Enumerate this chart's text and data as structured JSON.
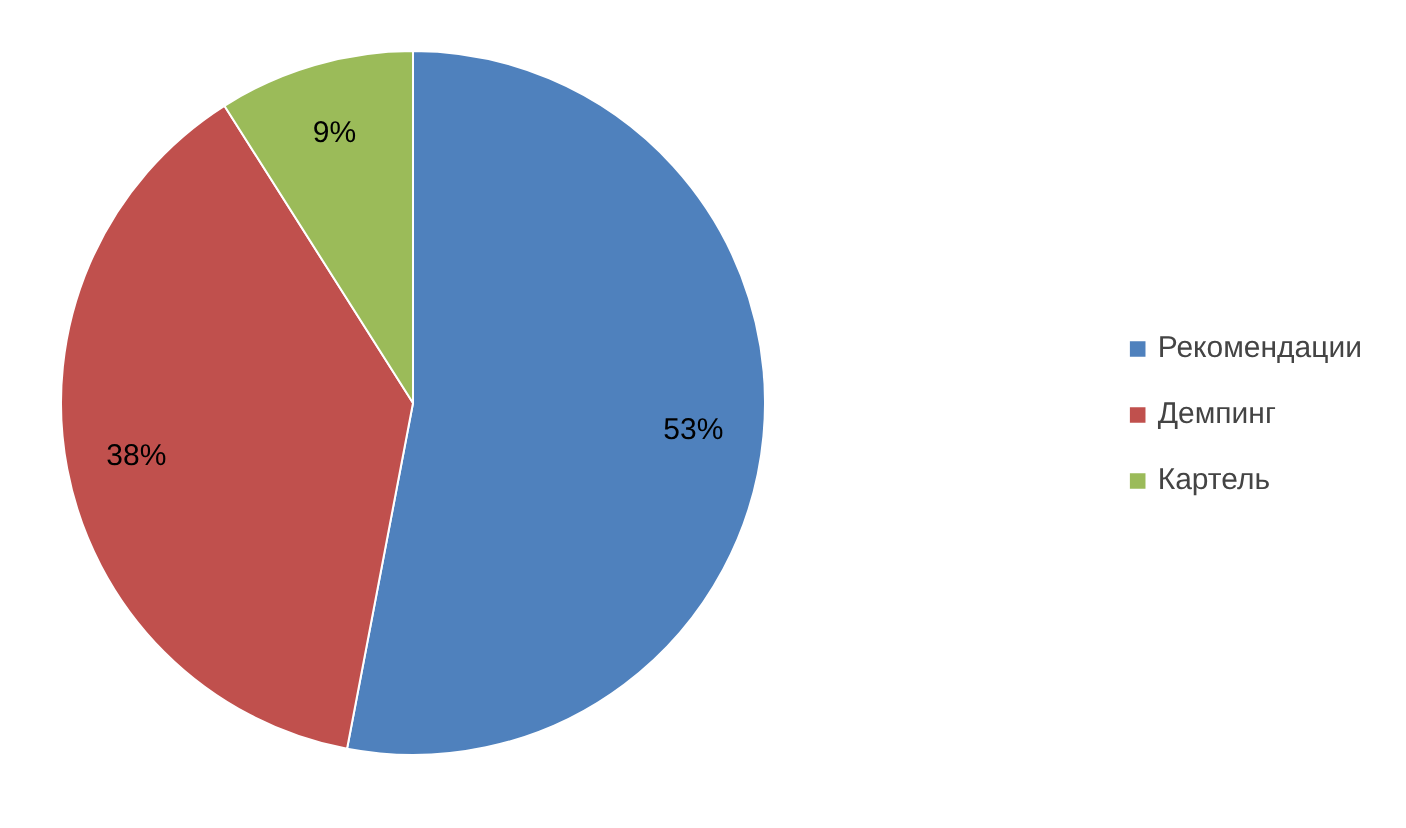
{
  "chart_data": {
    "type": "pie",
    "categories": [
      "Рекомендации",
      "Демпинг",
      "Картель"
    ],
    "values": [
      53,
      38,
      9
    ],
    "colors": [
      "#4f81bd",
      "#c0504d",
      "#9bbb59"
    ],
    "value_labels": [
      "53%",
      "38%",
      "9%"
    ],
    "legend": "right"
  }
}
